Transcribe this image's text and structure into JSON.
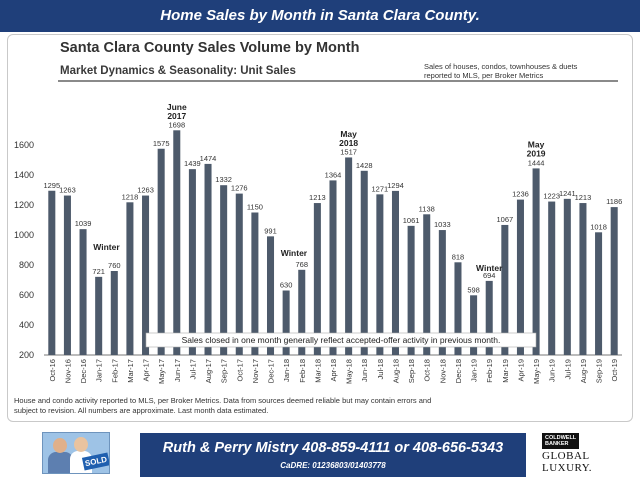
{
  "banner": {
    "title": "Home Sales by Month in Santa Clara County."
  },
  "chart_data": {
    "type": "bar",
    "title": "Santa Clara County Sales Volume by Month",
    "subtitle": "Market Dynamics  &  Seasonality:  Unit Sales",
    "source_note": "Sales of houses, condos, townhouses & duets reported to MLS, per Broker Metrics",
    "ylim": [
      200,
      1700
    ],
    "yticks": [
      200,
      400,
      600,
      800,
      1000,
      1200,
      1400,
      1600
    ],
    "categories": [
      "Oct-16",
      "Nov-16",
      "Dec-16",
      "Jan-17",
      "Feb-17",
      "Mar-17",
      "Apr-17",
      "May-17",
      "Jun-17",
      "Jul-17",
      "Aug-17",
      "Sep-17",
      "Oct-17",
      "Nov-17",
      "Dec-17",
      "Jan-18",
      "Feb-18",
      "Mar-18",
      "Apr-18",
      "May-18",
      "Jun-18",
      "Jul-18",
      "Aug-18",
      "Sep-18",
      "Oct-18",
      "Nov-18",
      "Dec-18",
      "Jan-19",
      "Feb-19",
      "Mar-19",
      "Apr-19",
      "May-19",
      "Jun-19",
      "Jul-19",
      "Aug-19",
      "Sep-19",
      "Oct-19"
    ],
    "values": [
      1295,
      1263,
      1039,
      721,
      760,
      1218,
      1263,
      1575,
      1698,
      1439,
      1474,
      1332,
      1276,
      1150,
      991,
      630,
      768,
      1213,
      1364,
      1517,
      1428,
      1271,
      1294,
      1061,
      1138,
      1033,
      818,
      598,
      694,
      1067,
      1236,
      1444,
      1223,
      1241,
      1213,
      1018,
      1186
    ],
    "bar_color": "#4d5a6b",
    "annotations": [
      {
        "text": "Winter",
        "index": 3.5,
        "y": 900
      },
      {
        "text": "June",
        "index": 8,
        "y": 1835
      },
      {
        "text": "2017",
        "index": 8,
        "y": 1775
      },
      {
        "text": "Winter",
        "index": 15.5,
        "y": 860
      },
      {
        "text": "May",
        "index": 19,
        "y": 1655
      },
      {
        "text": "2018",
        "index": 19,
        "y": 1595
      },
      {
        "text": "Winter",
        "index": 28,
        "y": 760
      },
      {
        "text": "May",
        "index": 31,
        "y": 1585
      },
      {
        "text": "2019",
        "index": 31,
        "y": 1525
      }
    ],
    "callout": "Sales closed in one month generally reflect accepted-offer activity in previous month."
  },
  "footer_note": "House and condo activity reported to MLS, per Broker Metrics. Data from sources deemed reliable but may contain errors and subject to revision. All numbers are approximate. Last month data estimated.",
  "contact": {
    "line": "Ruth & Perry Mistry  408-859-4111   or   408-656-5343",
    "license": "CaDRE: 01236803/01403778"
  },
  "photo": {
    "sign_text": "SOLD"
  },
  "brand": {
    "box_line1": "COLDWELL",
    "box_line2": "BANKER",
    "line1": "GLOBAL",
    "line2": "LUXURY."
  }
}
